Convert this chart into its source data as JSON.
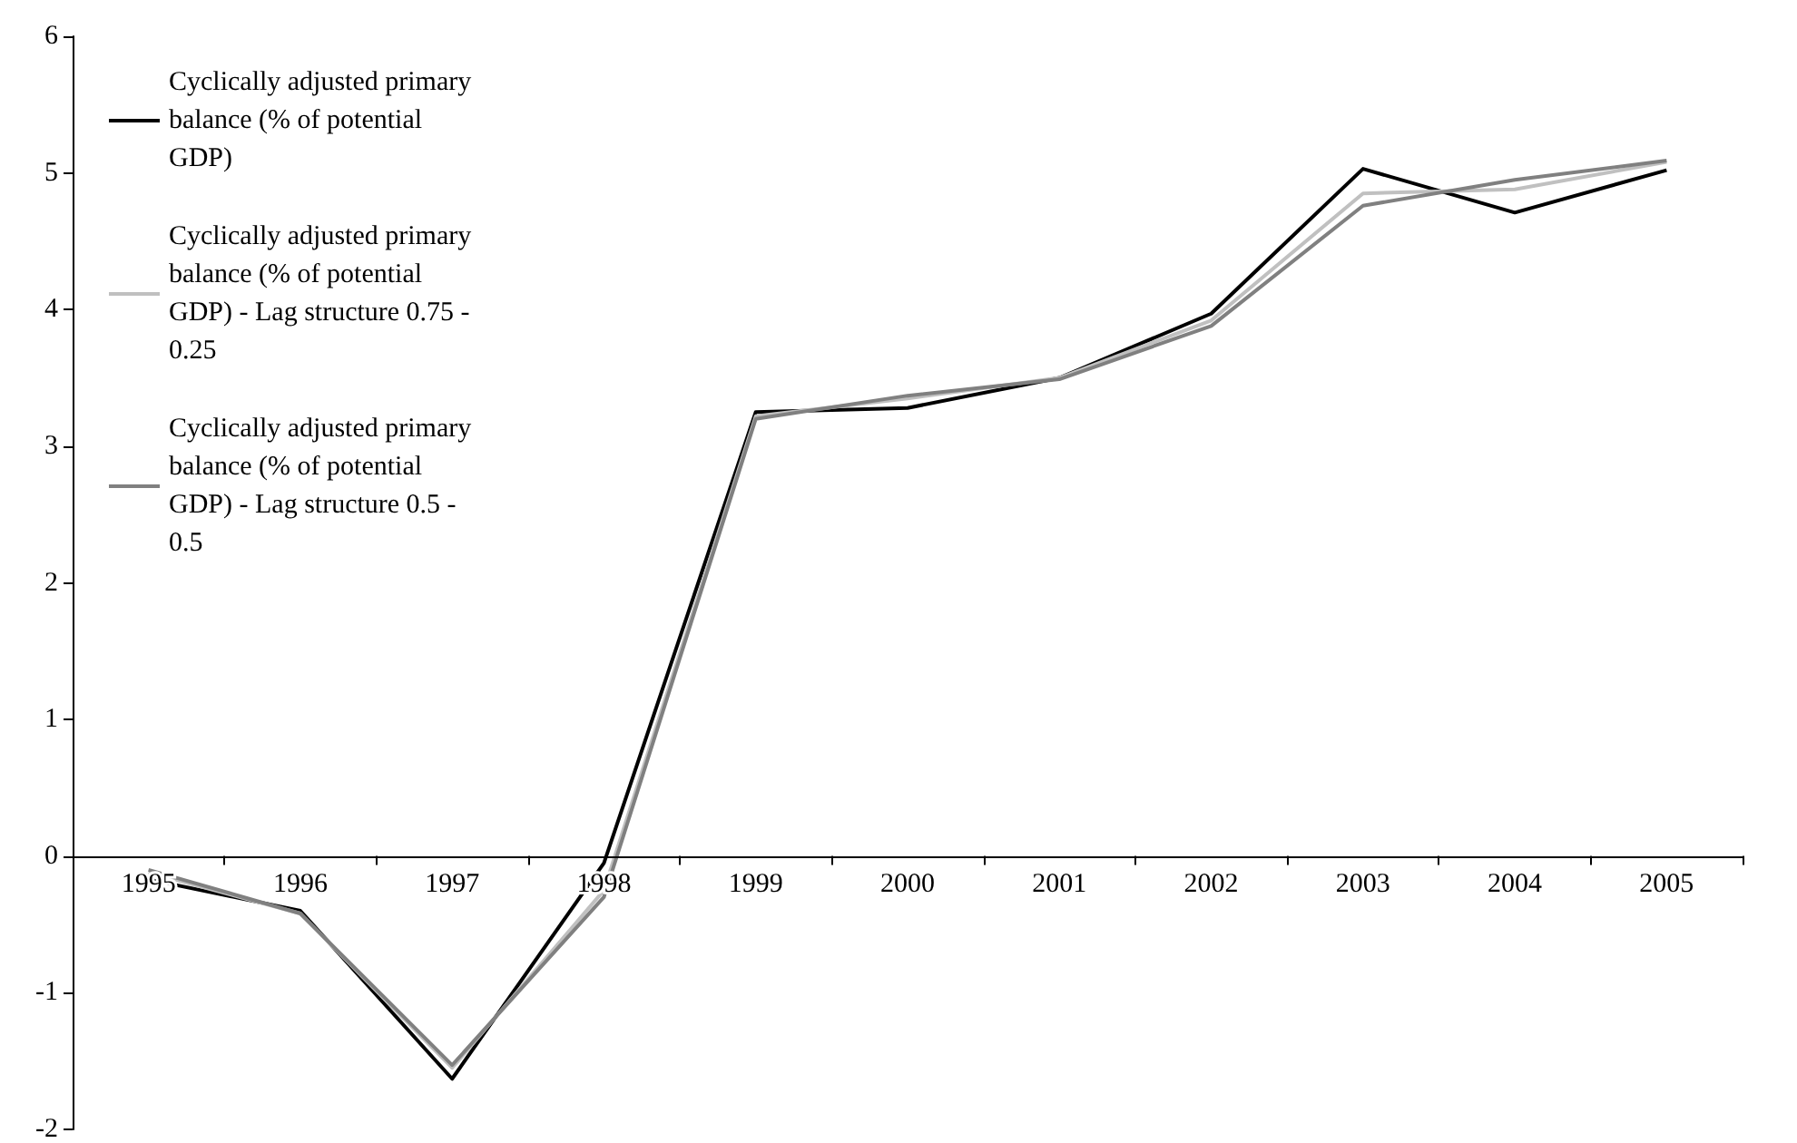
{
  "chart_data": {
    "type": "line",
    "categories": [
      "1995",
      "1996",
      "1997",
      "1998",
      "1999",
      "2000",
      "2001",
      "2002",
      "2003",
      "2004",
      "2005"
    ],
    "series": [
      {
        "name": "Cyclically adjusted primary balance (% of potential GDP)",
        "color": "#000000",
        "values": [
          -0.17,
          -0.4,
          -1.63,
          -0.05,
          3.25,
          3.28,
          3.5,
          3.97,
          5.03,
          4.71,
          5.02
        ]
      },
      {
        "name": "Cyclically adjusted primary balance (% of potential GDP) - Lag structure 0.75 - 0.25",
        "color": "#c0c0c0",
        "values": [
          -0.12,
          -0.42,
          -1.55,
          -0.25,
          3.22,
          3.35,
          3.5,
          3.92,
          4.85,
          4.88,
          5.08
        ]
      },
      {
        "name": "Cyclically adjusted primary balance (% of potential GDP) - Lag structure 0.5 - 0.5",
        "color": "#808080",
        "values": [
          -0.1,
          -0.42,
          -1.53,
          -0.3,
          3.2,
          3.37,
          3.49,
          3.88,
          4.76,
          4.95,
          5.09
        ]
      }
    ],
    "ylim": [
      -2,
      6
    ],
    "yticks": [
      -2,
      -1,
      0,
      1,
      2,
      3,
      4,
      5,
      6
    ],
    "grid": false,
    "legend": "top left",
    "marker": "none",
    "line_style": "solid"
  }
}
